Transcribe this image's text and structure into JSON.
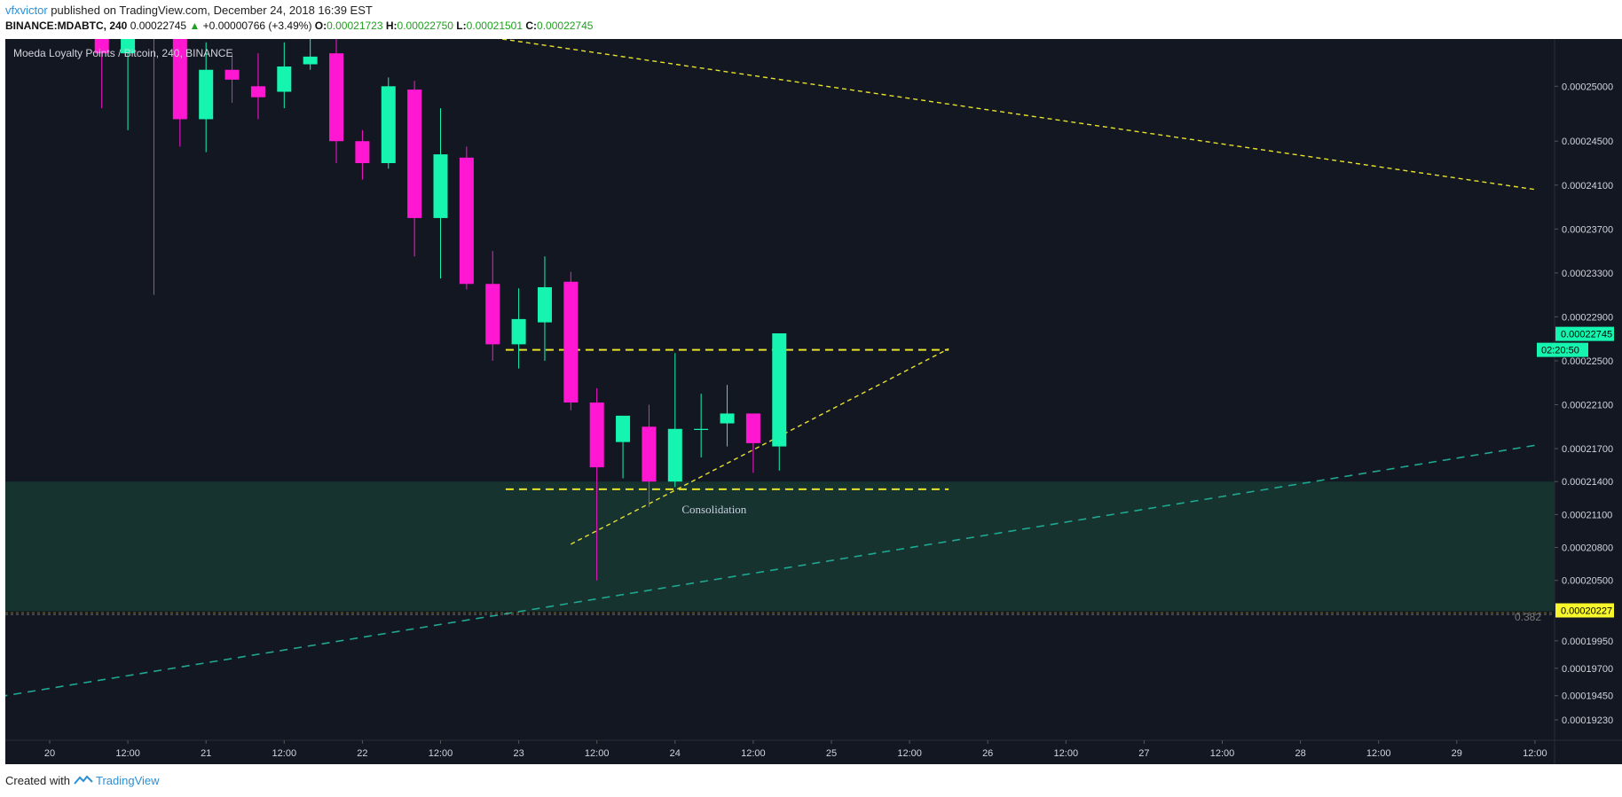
{
  "header": {
    "user": "vfxvictor",
    "published_text": "published on TradingView.com, December 24, 2018 16:39 EST",
    "symbol": "BINANCE:MDABTC, 240",
    "last": "0.00022745",
    "change_icon": "triangle-up-icon",
    "change": "+0.00000766 (+3.49%)",
    "o_label": "O:",
    "o_value": "0.00021723",
    "h_label": "H:",
    "h_value": "0.00022750",
    "l_label": "L:",
    "l_value": "0.00021501",
    "c_label": "C:",
    "c_value": "0.00022745"
  },
  "footer": {
    "created_with": "Created with",
    "brand": "TradingView",
    "brand_icon": "tradingview-logo-icon"
  },
  "colors": {
    "background": "#131722",
    "up": "#16f5b0",
    "down": "#ff17d1",
    "dashed_yellow": "#e8e22b",
    "trend_teal": "#1fa891",
    "zone": "#163330",
    "axis_text": "#d1d4dc",
    "price_badge_up": "#16f5b0",
    "price_badge_yellow": "#f7f72b"
  },
  "chart_data": {
    "type": "candlestick",
    "title": "Moeda Loyalty Points / Bitcoin, 240, BINANCE",
    "ylim": [
      0.0001918,
      0.0002568
    ],
    "y_ticks": [
      "0.00025000",
      "0.00024500",
      "0.00024100",
      "0.00023700",
      "0.00023300",
      "0.00022900",
      "0.00022500",
      "0.00022100",
      "0.00021700",
      "0.00021400",
      "0.00021100",
      "0.00020800",
      "0.00020500",
      "0.00019950",
      "0.00019700",
      "0.00019450",
      "0.00019230"
    ],
    "x_ticks": [
      "20",
      "12:00",
      "21",
      "12:00",
      "22",
      "12:00",
      "23",
      "12:00",
      "24",
      "12:00",
      "25",
      "12:00",
      "26",
      "12:00",
      "27",
      "12:00",
      "28",
      "12:00",
      "29",
      "12:00"
    ],
    "x_tick_dates": [
      "2018-12-20 00:00",
      "2018-12-20 12:00",
      "2018-12-21 00:00",
      "2018-12-21 12:00",
      "2018-12-22 00:00",
      "2018-12-22 12:00",
      "2018-12-23 00:00",
      "2018-12-23 12:00",
      "2018-12-24 00:00",
      "2018-12-24 12:00",
      "2018-12-25 00:00",
      "2018-12-25 12:00",
      "2018-12-26 00:00",
      "2018-12-26 12:00",
      "2018-12-27 00:00",
      "2018-12-27 12:00",
      "2018-12-28 00:00",
      "2018-12-28 12:00",
      "2018-12-29 00:00",
      "2018-12-29 12:00"
    ],
    "candles": [
      {
        "t": "2018-12-20 08:00",
        "o": 0.000257,
        "h": 0.000258,
        "l": 0.000248,
        "c": 0.000253
      },
      {
        "t": "2018-12-20 12:00",
        "o": 0.000253,
        "h": 0.000264,
        "l": 0.000246,
        "c": 0.000258
      },
      {
        "t": "2018-12-20 16:00",
        "o": 0.000258,
        "h": 0.000259,
        "l": 0.000231,
        "c": 0.000255
      },
      {
        "t": "2018-12-20 20:00",
        "o": 0.000255,
        "h": 0.000256,
        "l": 0.0002445,
        "c": 0.000247
      },
      {
        "t": "2018-12-21 00:00",
        "o": 0.000247,
        "h": 0.000254,
        "l": 0.000244,
        "c": 0.0002515
      },
      {
        "t": "2018-12-21 04:00",
        "o": 0.0002515,
        "h": 0.000253,
        "l": 0.0002485,
        "c": 0.0002506
      },
      {
        "t": "2018-12-21 08:00",
        "o": 0.00025,
        "h": 0.000253,
        "l": 0.000247,
        "c": 0.000249
      },
      {
        "t": "2018-12-21 12:00",
        "o": 0.0002495,
        "h": 0.000254,
        "l": 0.000248,
        "c": 0.0002518
      },
      {
        "t": "2018-12-21 16:00",
        "o": 0.000252,
        "h": 0.000256,
        "l": 0.0002515,
        "c": 0.0002527
      },
      {
        "t": "2018-12-21 20:00",
        "o": 0.000253,
        "h": 0.0002545,
        "l": 0.000243,
        "c": 0.000245
      },
      {
        "t": "2018-12-22 00:00",
        "o": 0.000245,
        "h": 0.000246,
        "l": 0.0002415,
        "c": 0.000243
      },
      {
        "t": "2018-12-22 04:00",
        "o": 0.000243,
        "h": 0.0002508,
        "l": 0.0002425,
        "c": 0.00025
      },
      {
        "t": "2018-12-22 08:00",
        "o": 0.0002497,
        "h": 0.0002505,
        "l": 0.0002345,
        "c": 0.000238
      },
      {
        "t": "2018-12-22 12:00",
        "o": 0.000238,
        "h": 0.000248,
        "l": 0.0002325,
        "c": 0.0002438
      },
      {
        "t": "2018-12-22 16:00",
        "o": 0.0002435,
        "h": 0.0002445,
        "l": 0.0002315,
        "c": 0.000232
      },
      {
        "t": "2018-12-22 20:00",
        "o": 0.000232,
        "h": 0.000235,
        "l": 0.000225,
        "c": 0.0002265
      },
      {
        "t": "2018-12-23 00:00",
        "o": 0.0002265,
        "h": 0.0002316,
        "l": 0.0002243,
        "c": 0.0002288
      },
      {
        "t": "2018-12-23 04:00",
        "o": 0.0002285,
        "h": 0.0002345,
        "l": 0.000225,
        "c": 0.0002317
      },
      {
        "t": "2018-12-23 08:00",
        "o": 0.0002322,
        "h": 0.0002331,
        "l": 0.0002205,
        "c": 0.0002212
      },
      {
        "t": "2018-12-23 12:00",
        "o": 0.0002212,
        "h": 0.0002225,
        "l": 0.000205,
        "c": 0.0002153
      },
      {
        "t": "2018-12-23 16:00",
        "o": 0.0002176,
        "h": 0.00022,
        "l": 0.0002143,
        "c": 0.00022
      },
      {
        "t": "2018-12-23 20:00",
        "o": 0.000219,
        "h": 0.000221,
        "l": 0.0002117,
        "c": 0.000214
      },
      {
        "t": "2018-12-24 00:00",
        "o": 0.000214,
        "h": 0.0002257,
        "l": 0.0002135,
        "c": 0.0002188
      },
      {
        "t": "2018-12-24 04:00",
        "o": 0.0002187,
        "h": 0.000222,
        "l": 0.0002162,
        "c": 0.0002188
      },
      {
        "t": "2018-12-24 08:00",
        "o": 0.0002193,
        "h": 0.0002228,
        "l": 0.0002172,
        "c": 0.0002202
      },
      {
        "t": "2018-12-24 12:00",
        "o": 0.0002202,
        "h": 0.0002202,
        "l": 0.0002148,
        "c": 0.0002175
      },
      {
        "t": "2018-12-24 16:00",
        "o": 0.0002172,
        "h": 0.0002275,
        "l": 0.000215,
        "c": 0.0002275
      }
    ],
    "annotations": [
      {
        "type": "text",
        "text": "Consolidation",
        "x": "2018-12-24 06:00",
        "y": 0.0002111
      },
      {
        "type": "hline",
        "style": "dashed",
        "color": "#e8e22b",
        "y": 0.000226,
        "x_start": "2018-12-22 22:00",
        "x_end": "2018-12-25 18:00"
      },
      {
        "type": "hline",
        "style": "dashed",
        "color": "#e8e22b",
        "y": 0.0002133,
        "x_start": "2018-12-22 22:00",
        "x_end": "2018-12-25 18:00"
      },
      {
        "type": "trendline",
        "style": "dashed",
        "color": "#e8e22b",
        "from": {
          "x": "2018-12-23 08:00",
          "y": 0.0002083
        },
        "to": {
          "x": "2018-12-25 18:00",
          "y": 0.0002261
        }
      },
      {
        "type": "trendline",
        "style": "dashed",
        "color": "#e8e22b",
        "from": {
          "x": "2018-12-21 20:00",
          "y": 0.0002565
        },
        "to": {
          "x": "2018-12-29 12:00",
          "y": 0.0002406
        }
      },
      {
        "type": "trendline",
        "style": "dashed",
        "color": "#1fa891",
        "from": {
          "x": "2018-12-19 12:00",
          "y": 0.000194
        },
        "to": {
          "x": "2018-12-29 12:00",
          "y": 0.0002173
        }
      },
      {
        "type": "zone",
        "color": "#163330",
        "y_top": 0.000214,
        "y_bottom": 0.0002022
      },
      {
        "type": "fib_line",
        "label": "0.382",
        "y": 0.0002019
      }
    ],
    "price_badges": [
      {
        "value": "0.00022745",
        "countdown": "02:20:50",
        "y": 0.00022745
      },
      {
        "value": "0.00020227",
        "y": 0.00020227
      }
    ],
    "grid": false
  }
}
